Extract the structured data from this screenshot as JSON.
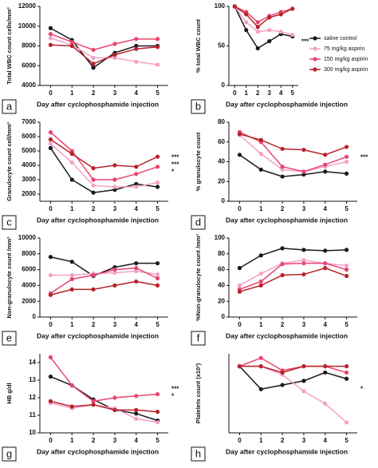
{
  "chart_data": [
    {
      "type": "line",
      "panel": "a",
      "ylabel": "Total WBC count cells/mm³",
      "xlabel": "Day after cyclophosphamide injection",
      "x": [
        0,
        1,
        2,
        3,
        4,
        5
      ],
      "xlim": [
        -0.5,
        5.5
      ],
      "xticks": [
        0,
        1,
        2,
        3,
        4,
        5
      ],
      "ylim": [
        4000,
        12000
      ],
      "yticks": [
        4000,
        6000,
        8000,
        10000,
        12000
      ],
      "series": [
        {
          "color": "#1a1a1a",
          "values": [
            9800,
            8600,
            5800,
            7300,
            8000,
            8000
          ]
        },
        {
          "color": "#f4a0c8",
          "values": [
            8800,
            8100,
            6800,
            6800,
            6400,
            6100
          ]
        },
        {
          "color": "#e8456f",
          "values": [
            9200,
            8400,
            7600,
            8200,
            8700,
            8700
          ]
        },
        {
          "color": "#b8222b",
          "values": [
            8100,
            8000,
            6200,
            7100,
            7700,
            7900
          ]
        }
      ]
    },
    {
      "type": "line",
      "panel": "b",
      "ylabel": "% total WBC count",
      "xlabel": "Day after cyclophosphamide injection",
      "x": [
        0,
        1,
        2,
        3,
        4,
        5
      ],
      "xlim": [
        -0.5,
        5.5
      ],
      "xticks": [
        0,
        1,
        2,
        3,
        4,
        5
      ],
      "ylim": [
        0,
        100
      ],
      "yticks": [
        0,
        50,
        100
      ],
      "annotations": [
        "***"
      ],
      "series": [
        {
          "name": "saline control",
          "color": "#1a1a1a",
          "values": [
            100,
            70,
            47,
            56,
            65,
            62
          ]
        },
        {
          "name": "75 mg/kg aspirin",
          "color": "#f4a0c8",
          "values": [
            100,
            80,
            68,
            70,
            68,
            64
          ]
        },
        {
          "name": "150 mg/kg aspirin",
          "color": "#e8456f",
          "values": [
            100,
            93,
            80,
            88,
            93,
            97
          ]
        },
        {
          "name": "300 mg/kg aspirin",
          "color": "#b8222b",
          "values": [
            100,
            90,
            74,
            86,
            90,
            97
          ]
        }
      ]
    },
    {
      "type": "line",
      "panel": "c",
      "ylabel": "Granulocyte count cell/mm³",
      "xlabel": "Day after cyclophosphamide injection",
      "x": [
        0,
        1,
        2,
        3,
        4,
        5
      ],
      "xlim": [
        -0.5,
        5.5
      ],
      "xticks": [
        0,
        1,
        2,
        3,
        4,
        5
      ],
      "ylim": [
        1500,
        7000
      ],
      "yticks": [
        2000,
        3000,
        4000,
        5000,
        6000,
        7000
      ],
      "annotations": [
        "***",
        "***",
        "*"
      ],
      "series": [
        {
          "color": "#1a1a1a",
          "values": [
            5200,
            3000,
            2100,
            2300,
            2700,
            2500
          ]
        },
        {
          "color": "#f4a0c8",
          "values": [
            5500,
            4200,
            2600,
            2500,
            2500,
            2800
          ]
        },
        {
          "color": "#e8456f",
          "values": [
            6300,
            5000,
            3000,
            3000,
            3400,
            3900
          ]
        },
        {
          "color": "#b8222b",
          "values": [
            5800,
            4800,
            3800,
            4000,
            3900,
            4600
          ]
        }
      ]
    },
    {
      "type": "line",
      "panel": "d",
      "ylabel": "% granulocyte count",
      "xlabel": "Day after cyclophosphamide injection",
      "x": [
        0,
        1,
        2,
        3,
        4,
        5
      ],
      "xlim": [
        -0.5,
        5.5
      ],
      "xticks": [
        0,
        1,
        2,
        3,
        4,
        5
      ],
      "ylim": [
        0,
        80
      ],
      "yticks": [
        0,
        20,
        40,
        60,
        80
      ],
      "annotations": [
        "***"
      ],
      "series": [
        {
          "color": "#1a1a1a",
          "values": [
            47,
            32,
            25,
            27,
            30,
            28
          ]
        },
        {
          "color": "#f4a0c8",
          "values": [
            67,
            48,
            32,
            30,
            35,
            40
          ]
        },
        {
          "color": "#e8456f",
          "values": [
            70,
            60,
            35,
            30,
            37,
            45
          ]
        },
        {
          "color": "#b8222b",
          "values": [
            68,
            62,
            53,
            52,
            47,
            55
          ]
        }
      ]
    },
    {
      "type": "line",
      "panel": "e",
      "ylabel": "Non-granulocyte count /mm³",
      "xlabel": "Day after cyclophosphamide injection",
      "x": [
        0,
        1,
        2,
        3,
        4,
        5
      ],
      "xlim": [
        -0.5,
        5.5
      ],
      "xticks": [
        0,
        1,
        2,
        3,
        4,
        5
      ],
      "ylim": [
        0,
        10000
      ],
      "yticks": [
        0,
        2000,
        4000,
        6000,
        8000,
        10000
      ],
      "series": [
        {
          "color": "#1a1a1a",
          "values": [
            7600,
            7000,
            5200,
            6300,
            6800,
            6800
          ]
        },
        {
          "color": "#f4a0c8",
          "values": [
            5300,
            5300,
            5500,
            5600,
            5800,
            5400
          ]
        },
        {
          "color": "#e8456f",
          "values": [
            3000,
            4800,
            5300,
            6000,
            6200,
            4900
          ]
        },
        {
          "color": "#b8222b",
          "values": [
            2800,
            3500,
            3500,
            4000,
            4500,
            4000
          ]
        }
      ]
    },
    {
      "type": "line",
      "panel": "f",
      "ylabel": "%Non-granulocyte count /mm³",
      "xlabel": "Day after cyclophosphamide injection",
      "x": [
        0,
        1,
        2,
        3,
        4,
        5
      ],
      "xlim": [
        -0.5,
        5.5
      ],
      "xticks": [
        0,
        1,
        2,
        3,
        4,
        5
      ],
      "ylim": [
        0,
        100
      ],
      "yticks": [
        0,
        20,
        40,
        60,
        80,
        100
      ],
      "series": [
        {
          "color": "#1a1a1a",
          "values": [
            62,
            78,
            87,
            85,
            84,
            85
          ]
        },
        {
          "color": "#f4a0c8",
          "values": [
            40,
            55,
            68,
            72,
            68,
            65
          ]
        },
        {
          "color": "#e8456f",
          "values": [
            35,
            45,
            67,
            68,
            68,
            60
          ]
        },
        {
          "color": "#b8222b",
          "values": [
            32,
            40,
            53,
            54,
            62,
            52
          ]
        }
      ]
    },
    {
      "type": "line",
      "panel": "g",
      "ylabel": "HB g/dl",
      "xlabel": "Day after cyclophosphamide injection",
      "x": [
        0,
        1,
        2,
        3,
        4,
        5
      ],
      "xlim": [
        -0.5,
        5.5
      ],
      "xticks": [
        0,
        1,
        2,
        3,
        4,
        5
      ],
      "ylim": [
        10,
        14.5
      ],
      "yticks": [
        10,
        11,
        12,
        13,
        14
      ],
      "annotations": [
        "***",
        "*"
      ],
      "series": [
        {
          "color": "#1a1a1a",
          "values": [
            13.2,
            12.7,
            11.9,
            11.3,
            11.1,
            10.7
          ]
        },
        {
          "color": "#f4a0c8",
          "values": [
            11.7,
            11.4,
            11.6,
            11.4,
            10.8,
            10.6
          ]
        },
        {
          "color": "#e8456f",
          "values": [
            14.3,
            12.7,
            11.8,
            12.0,
            12.1,
            12.2
          ]
        },
        {
          "color": "#b8222b",
          "values": [
            11.8,
            11.5,
            11.6,
            11.3,
            11.3,
            11.2
          ]
        }
      ]
    },
    {
      "type": "line",
      "panel": "h",
      "ylabel": "Platelets count (x10³)",
      "xlabel": "Day after cyclophosphamide injection",
      "x": [
        0,
        1,
        2,
        3,
        4,
        5
      ],
      "xlim": [
        -0.5,
        5.5
      ],
      "xticks": [
        0,
        1,
        2,
        3,
        4,
        5
      ],
      "ylim": [
        84,
        103
      ],
      "annotations": [
        "*"
      ],
      "series": [
        {
          "color": "#1a1a1a",
          "values": [
            100,
            94.5,
            95.5,
            96.5,
            98.5,
            97
          ]
        },
        {
          "color": "#f4a0c8",
          "values": [
            100,
            100,
            98,
            94,
            91,
            86.5
          ]
        },
        {
          "color": "#e8456f",
          "values": [
            100,
            102,
            99,
            100,
            100,
            98.5
          ]
        },
        {
          "color": "#b8222b",
          "values": [
            100,
            100,
            98.5,
            100,
            100,
            100
          ]
        }
      ]
    }
  ]
}
